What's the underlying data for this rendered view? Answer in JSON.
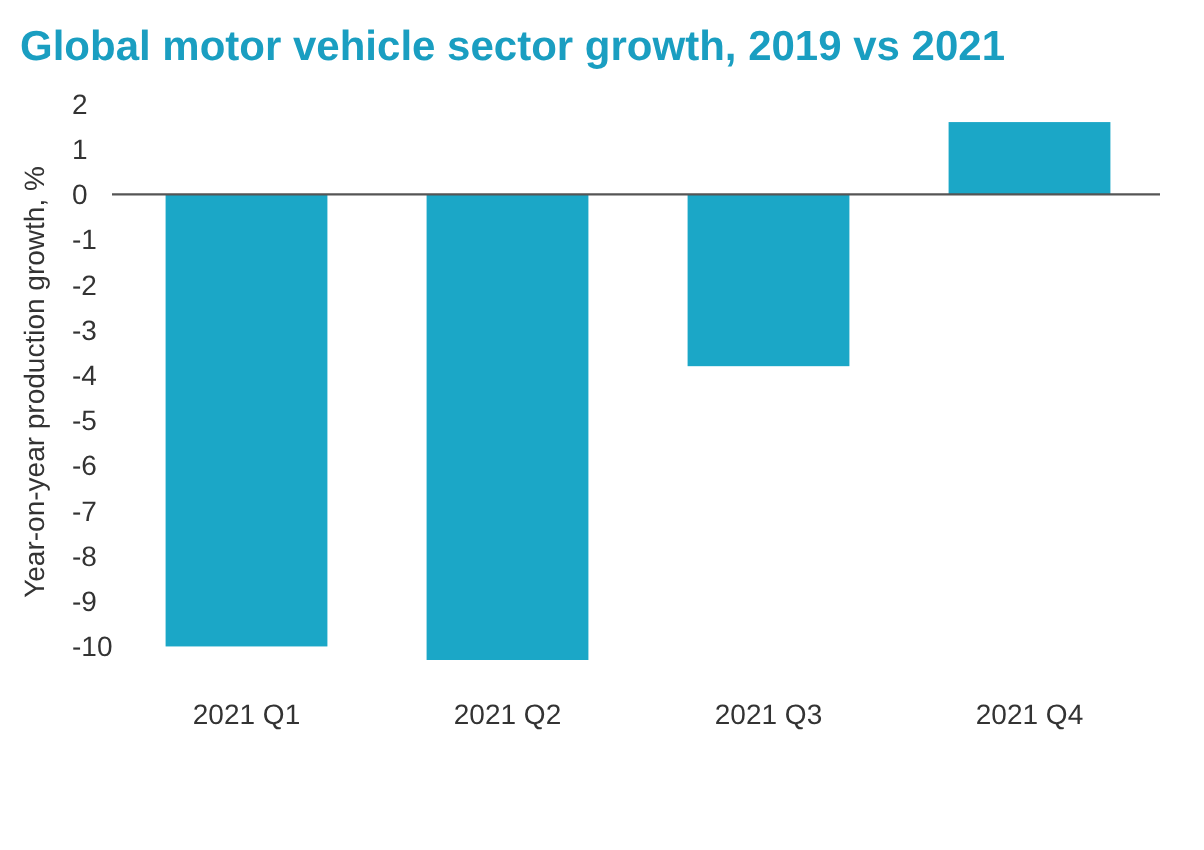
{
  "chart_data": {
    "type": "bar",
    "title": "Global motor vehicle sector growth, 2019 vs 2021",
    "ylabel": "Year-on-year production growth, %",
    "categories": [
      "2021 Q1",
      "2021 Q2",
      "2021 Q3",
      "2021 Q4"
    ],
    "values": [
      -10,
      -10.3,
      -3.8,
      1.6
    ],
    "color": "#1ba7c7",
    "ylim": [
      -10.3,
      2
    ],
    "yticks": [
      2,
      1,
      0,
      -1,
      -2,
      -3,
      -4,
      -5,
      -6,
      -7,
      -8,
      -9,
      -10
    ]
  }
}
